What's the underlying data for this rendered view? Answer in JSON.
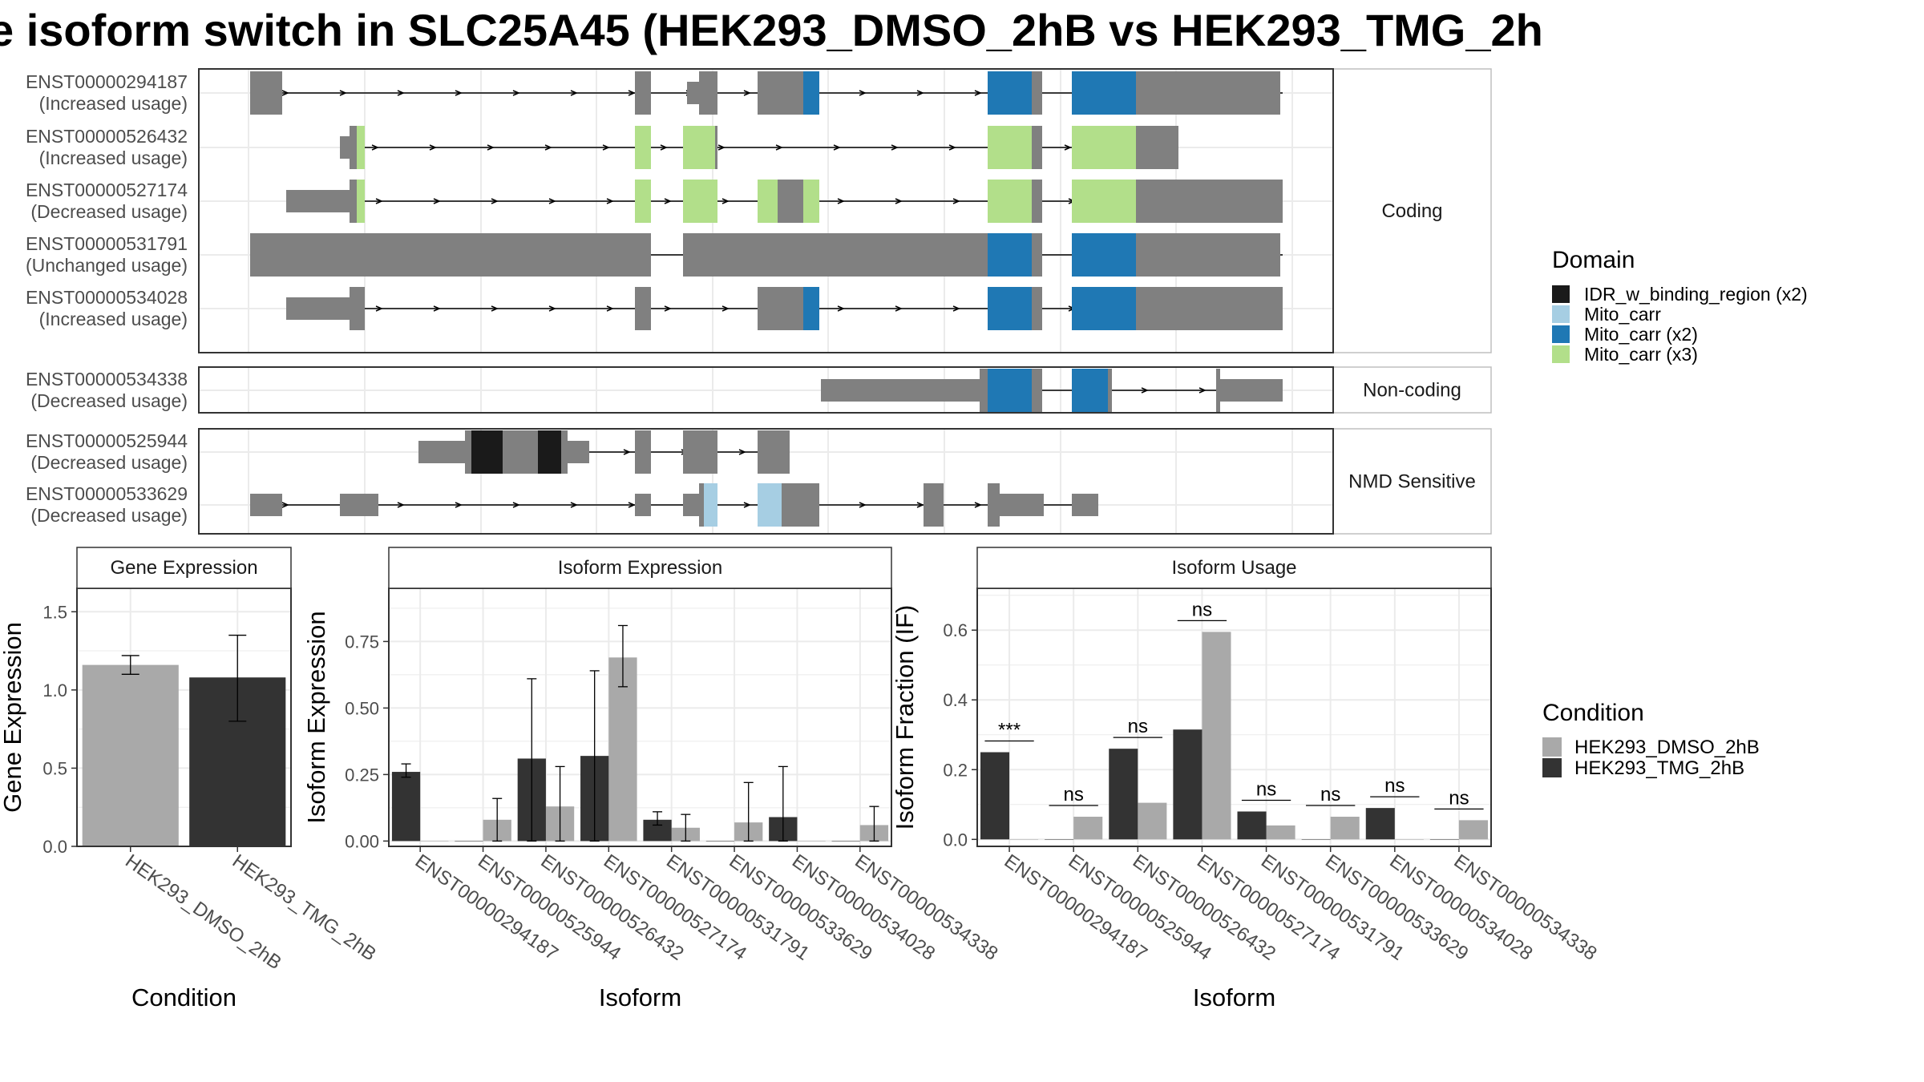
{
  "title": "e isoform switch in SLC25A45 (HEK293_DMSO_2hB vs HEK293_TMG_2h",
  "colors": {
    "exon_gray": "#808080",
    "IDR_w_binding_region_x2": "#1a1a1a",
    "Mito_carr": "#a6cee3",
    "Mito_carr_x2": "#1f78b4",
    "Mito_carr_x3": "#b2df8a",
    "DMSO": "#a9a9a9",
    "TMG": "#333333"
  },
  "structure": {
    "groups": [
      {
        "label": "Coding",
        "isoforms": [
          {
            "id": "ENST00000294187",
            "usage": "(Increased usage)"
          },
          {
            "id": "ENST00000526432",
            "usage": "(Increased usage)"
          },
          {
            "id": "ENST00000527174",
            "usage": "(Decreased usage)"
          },
          {
            "id": "ENST00000531791",
            "usage": "(Unchanged usage)"
          },
          {
            "id": "ENST00000534028",
            "usage": "(Increased usage)"
          }
        ]
      },
      {
        "label": "Non-coding",
        "isoforms": [
          {
            "id": "ENST00000534338",
            "usage": "(Decreased usage)"
          }
        ]
      },
      {
        "label": "NMD Sensitive",
        "isoforms": [
          {
            "id": "ENST00000525944",
            "usage": "(Decreased usage)"
          },
          {
            "id": "ENST00000533629",
            "usage": "(Decreased usage)"
          }
        ]
      }
    ],
    "domain_legend": {
      "title": "Domain",
      "items": [
        {
          "label": "IDR_w_binding_region (x2)",
          "color": "#1a1a1a"
        },
        {
          "label": "Mito_carr",
          "color": "#a6cee3"
        },
        {
          "label": "Mito_carr (x2)",
          "color": "#1f78b4"
        },
        {
          "label": "Mito_carr (x3)",
          "color": "#b2df8a"
        }
      ]
    }
  },
  "chart_data": [
    {
      "type": "bar",
      "title": "Gene Expression",
      "xlabel": "Condition",
      "ylabel": "Gene Expression",
      "categories": [
        "HEK293_DMSO_2hB",
        "HEK293_TMG_2hB"
      ],
      "values": [
        1.16,
        1.08
      ],
      "error": [
        [
          1.1,
          1.22
        ],
        [
          0.8,
          1.35
        ]
      ],
      "ylim": [
        0,
        1.65
      ],
      "yticks": [
        "0.0",
        "0.5",
        "1.0",
        "1.5"
      ]
    },
    {
      "type": "bar",
      "title": "Isoform Expression",
      "xlabel": "Isoform",
      "ylabel": "Isoform Expression",
      "categories": [
        "ENST00000294187",
        "ENST00000525944",
        "ENST00000526432",
        "ENST00000527174",
        "ENST00000531791",
        "ENST00000533629",
        "ENST00000534028",
        "ENST00000534338"
      ],
      "series": [
        {
          "name": "HEK293_DMSO_2hB",
          "values": [
            0.0,
            0.08,
            0.13,
            0.69,
            0.05,
            0.07,
            0.0,
            0.06
          ],
          "error": [
            [
              0,
              0
            ],
            [
              0.0,
              0.16
            ],
            [
              0,
              0.28
            ],
            [
              0.58,
              0.81
            ],
            [
              0,
              0.1
            ],
            [
              0,
              0.22
            ],
            [
              0,
              0
            ],
            [
              0,
              0.13
            ]
          ]
        },
        {
          "name": "HEK293_TMG_2hB",
          "values": [
            0.26,
            0.0,
            0.31,
            0.32,
            0.08,
            0.0,
            0.09,
            0.0
          ],
          "error": [
            [
              0.24,
              0.29
            ],
            [
              0,
              0
            ],
            [
              0,
              0.61
            ],
            [
              0,
              0.64
            ],
            [
              0.06,
              0.11
            ],
            [
              0,
              0
            ],
            [
              0,
              0.28
            ],
            [
              0,
              0
            ]
          ]
        }
      ],
      "ylim": [
        -0.02,
        0.95
      ],
      "yticks": [
        "0.00",
        "0.25",
        "0.50",
        "0.75"
      ]
    },
    {
      "type": "bar",
      "title": "Isoform Usage",
      "xlabel": "Isoform",
      "ylabel": "Isoform Fraction (IF)",
      "categories": [
        "ENST00000294187",
        "ENST00000525944",
        "ENST00000526432",
        "ENST00000527174",
        "ENST00000531791",
        "ENST00000533629",
        "ENST00000534028",
        "ENST00000534338"
      ],
      "series": [
        {
          "name": "HEK293_DMSO_2hB",
          "values": [
            0.0,
            0.065,
            0.105,
            0.595,
            0.04,
            0.065,
            0.0,
            0.055
          ]
        },
        {
          "name": "HEK293_TMG_2hB",
          "values": [
            0.25,
            0.0,
            0.26,
            0.315,
            0.08,
            0.0,
            0.09,
            0.0
          ]
        }
      ],
      "annotations": [
        "***",
        "ns",
        "ns",
        "ns",
        "ns",
        "ns",
        "ns",
        "ns"
      ],
      "ylim": [
        -0.02,
        0.72
      ],
      "yticks": [
        "0.0",
        "0.2",
        "0.4",
        "0.6"
      ]
    }
  ],
  "condition_legend": {
    "title": "Condition",
    "items": [
      {
        "label": "HEK293_DMSO_2hB",
        "color": "#a9a9a9"
      },
      {
        "label": "HEK293_TMG_2hB",
        "color": "#333333"
      }
    ]
  }
}
